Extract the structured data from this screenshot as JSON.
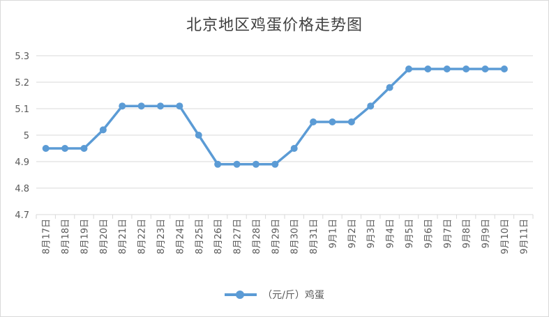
{
  "chart_data": {
    "type": "line",
    "title": "北京地区鸡蛋价格走势图",
    "categories": [
      "8月17日",
      "8月18日",
      "8月19日",
      "8月20日",
      "8月21日",
      "8月22日",
      "8月23日",
      "8月24日",
      "8月25日",
      "8月26日",
      "8月27日",
      "8月28日",
      "8月29日",
      "8月30日",
      "8月31日",
      "9月1日",
      "9月2日",
      "9月3日",
      "9月4日",
      "9月5日",
      "9月6日",
      "9月7日",
      "9月8日",
      "9月9日",
      "9月10日",
      "9月11日"
    ],
    "series": [
      {
        "name": "（元/斤）鸡蛋",
        "values": [
          4.95,
          4.95,
          4.95,
          5.02,
          5.11,
          5.11,
          5.11,
          5.11,
          5.0,
          4.89,
          4.89,
          4.89,
          4.89,
          4.95,
          5.05,
          5.05,
          5.05,
          5.11,
          5.18,
          5.25,
          5.25,
          5.25,
          5.25,
          5.25,
          5.25,
          null
        ],
        "color": "#5b9bd5"
      }
    ],
    "yticks": [
      "4.7",
      "4.8",
      "4.9",
      "5",
      "5.1",
      "5.2",
      "5.3"
    ],
    "ylim": [
      4.7,
      5.3
    ],
    "xlabel": "",
    "ylabel": "",
    "grid": true,
    "legend": "bottom"
  }
}
